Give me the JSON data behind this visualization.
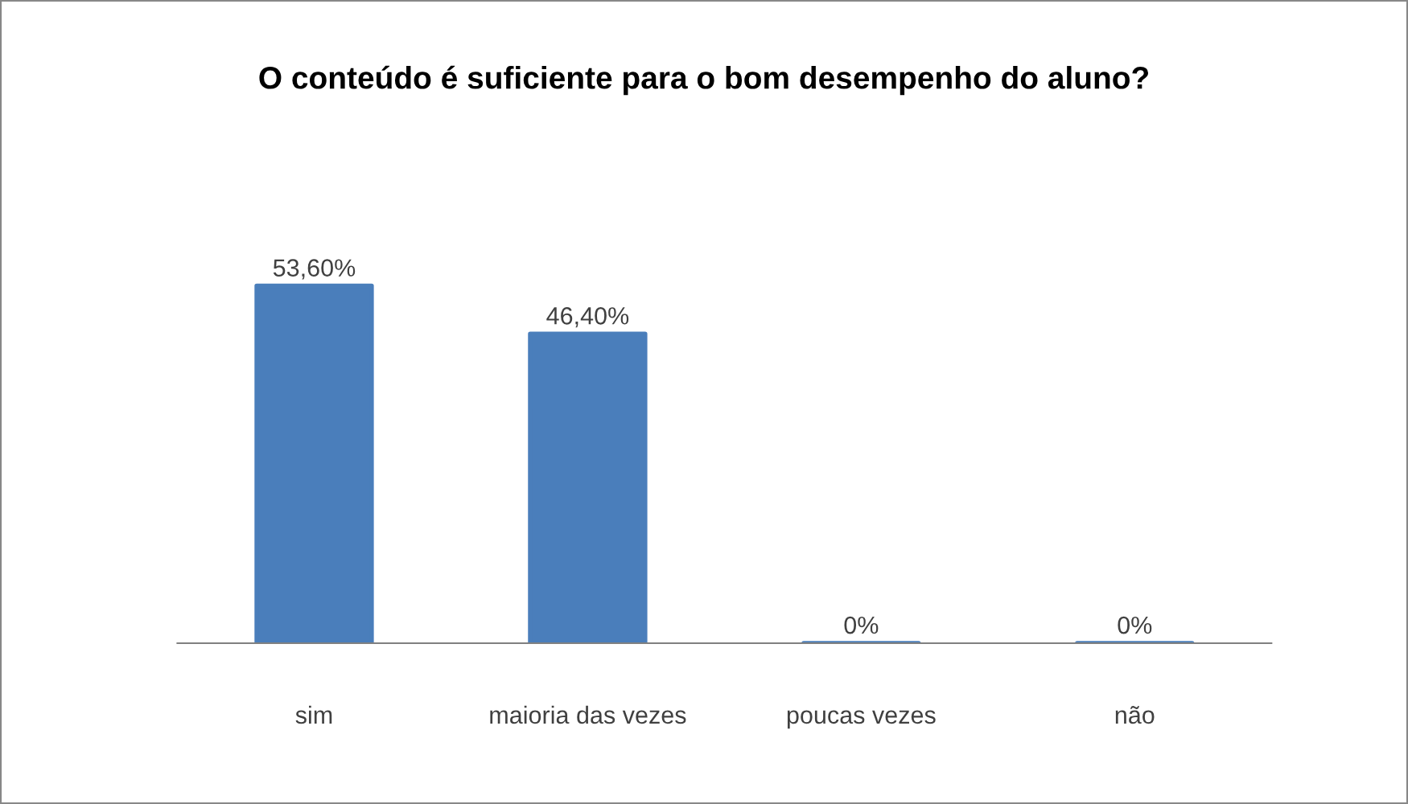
{
  "chart_data": {
    "type": "bar",
    "title": "O conteúdo é suficiente para o bom desempenho do aluno?",
    "categories": [
      "sim",
      "maioria das vezes",
      "poucas vezes",
      "não"
    ],
    "values": [
      53.6,
      46.4,
      0,
      0
    ],
    "color": "#4a7ebb",
    "value_labels": [
      "53,60%",
      "46,40%",
      "0%",
      "0%"
    ],
    "grid": false,
    "legend": false
  }
}
